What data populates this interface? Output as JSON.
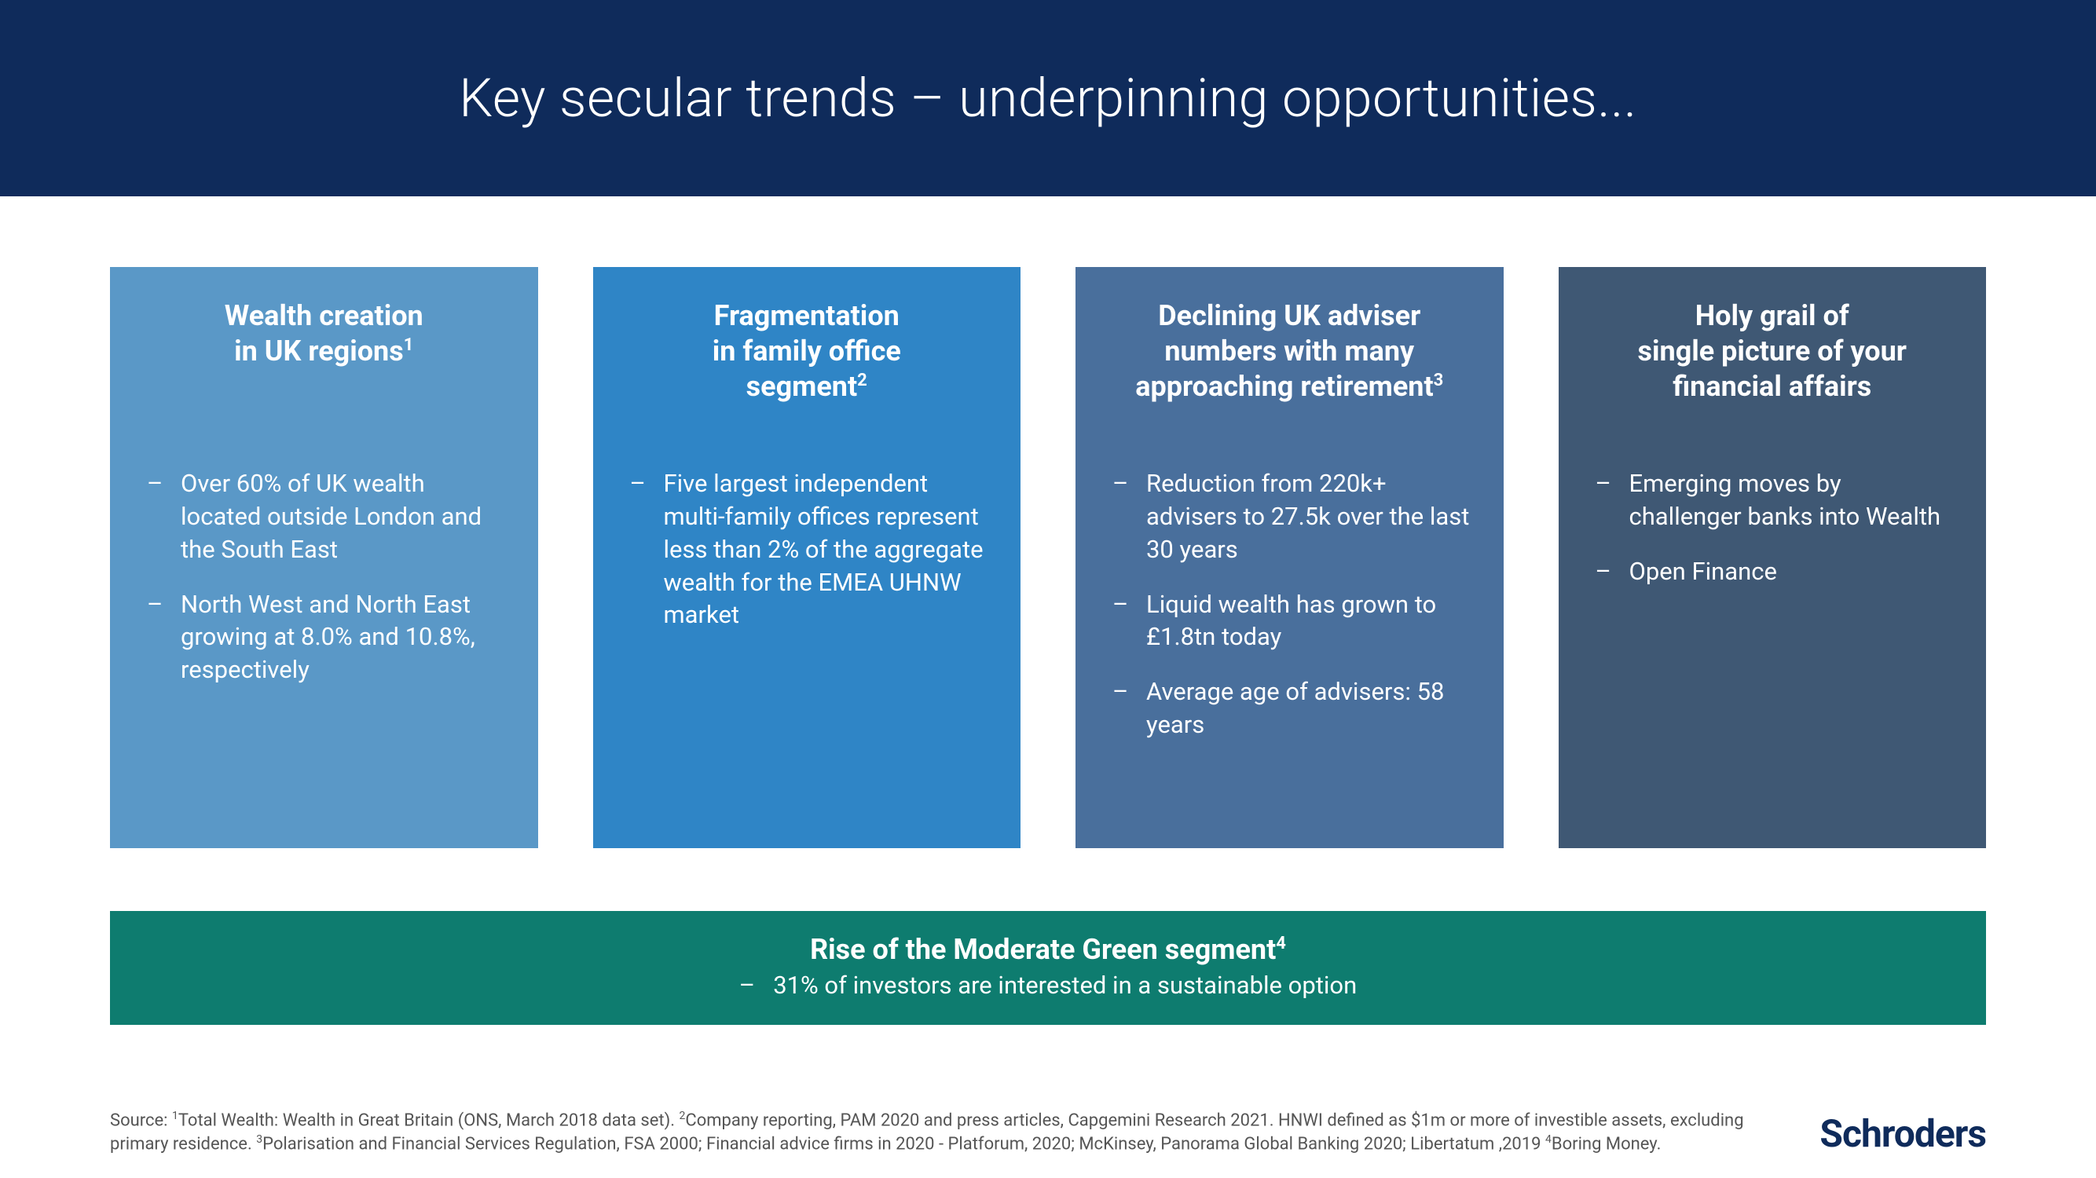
{
  "header": {
    "title": "Key secular trends – underpinning opportunities...",
    "background_color": "#0f2b5b"
  },
  "cards": [
    {
      "title_html": "Wealth creation<br>in UK regions<sup>1</sup>",
      "background_color": "#5a98c7",
      "bullets": [
        "Over 60% of UK wealth located outside London and the South East",
        "North West and North East growing at 8.0% and 10.8%, respectively"
      ]
    },
    {
      "title_html": "Fragmentation<br>in family office<br>segment<sup>2</sup>",
      "background_color": "#2f85c6",
      "bullets": [
        "Five largest independent multi-family offices represent less than 2% of the aggregate wealth for the EMEA UHNW market"
      ]
    },
    {
      "title_html": "Declining UK adviser numbers with many approaching retirement<sup>3</sup>",
      "background_color": "#496f9c",
      "bullets": [
        "Reduction from 220k+ advisers to 27.5k over the last 30 years",
        "Liquid wealth has grown to £1.8tn today",
        "Average age of advisers: 58 years"
      ]
    },
    {
      "title_html": "Holy grail of<br>single picture of your<br>financial affairs",
      "background_color": "#3f5874",
      "bullets": [
        "Emerging moves by challenger banks into Wealth",
        "Open Finance"
      ]
    }
  ],
  "green_bar": {
    "title_html": "Rise of the Moderate Green segment<sup>4</sup>",
    "sub": "31% of investors are interested in a sustainable option",
    "background_color": "#0e7c6f"
  },
  "source_html": "Source: <sup>1</sup>Total Wealth: Wealth in Great Britain (ONS, March 2018 data set). <sup>2</sup>Company reporting, PAM 2020 and press articles, Capgemini Research 2021. HNWI defined as $1m or more of investible assets, excluding primary residence. <sup>3</sup>Polarisation and Financial Services Regulation, FSA 2000; Financial advice firms in 2020 - Platforum, 2020; McKinsey, Panorama Global Banking 2020; Libertatum ,2019 <sup>4</sup>Boring Money.",
  "logo": "Schroders"
}
